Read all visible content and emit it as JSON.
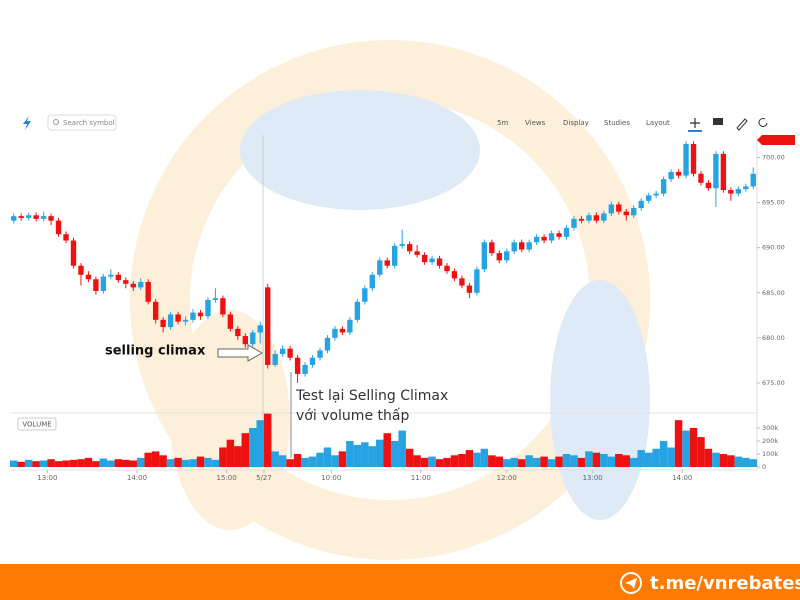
{
  "chart_data": {
    "type": "candlestick",
    "toolbar": [
      "Search symbol",
      "5m",
      "Views",
      "Display",
      "Studies",
      "Layout"
    ],
    "volume_label": "VOLUME",
    "annotations": [
      "selling climax",
      "Test lại Selling Climax",
      "với volume thấp"
    ],
    "up_color": "#26a3e2",
    "down_color": "#ee1111",
    "xlim": [
      0,
      100
    ],
    "xticks": [
      {
        "value": 5,
        "label": "13:00"
      },
      {
        "value": 17,
        "label": "14:00"
      },
      {
        "value": 29,
        "label": "15:00"
      },
      {
        "value": 34,
        "label": "5/27"
      },
      {
        "value": 43,
        "label": "10:00"
      },
      {
        "value": 55,
        "label": "11:00"
      },
      {
        "value": 66.5,
        "label": "12:00"
      },
      {
        "value": 78,
        "label": "13:00"
      },
      {
        "value": 90,
        "label": "14:00"
      }
    ],
    "ylim": [
      672,
      702.5
    ],
    "yticks": [
      {
        "value": 675,
        "label": "675.00"
      },
      {
        "value": 680,
        "label": "680.00"
      },
      {
        "value": 685,
        "label": "685.00"
      },
      {
        "value": 690,
        "label": "690.00"
      },
      {
        "value": 695,
        "label": "695.00"
      },
      {
        "value": 700,
        "label": "700.00"
      }
    ],
    "y2lim": [
      0,
      415000
    ],
    "y2ticks": [
      0,
      {
        "value": 100000,
        "label": "100k"
      },
      {
        "value": 200000,
        "label": "200k"
      },
      {
        "value": 300000,
        "label": "300k"
      }
    ],
    "candles": [
      [
        693.0,
        693.8,
        692.7,
        693.5
      ],
      [
        693.5,
        693.8,
        693.0,
        693.3
      ],
      [
        693.3,
        693.9,
        693.0,
        693.6
      ],
      [
        693.6,
        693.9,
        692.9,
        693.2
      ],
      [
        693.2,
        694.0,
        692.9,
        693.5
      ],
      [
        693.5,
        693.8,
        692.5,
        693.0
      ],
      [
        693.0,
        693.3,
        691.2,
        691.5
      ],
      [
        691.5,
        691.8,
        690.5,
        690.8
      ],
      [
        690.8,
        691.1,
        687.7,
        688.0
      ],
      [
        688.0,
        688.3,
        685.8,
        687.0
      ],
      [
        687.0,
        687.4,
        686.2,
        686.5
      ],
      [
        686.5,
        686.8,
        684.8,
        685.2
      ],
      [
        685.2,
        687.1,
        684.9,
        686.8
      ],
      [
        686.8,
        687.6,
        686.5,
        687.0
      ],
      [
        687.0,
        687.3,
        686.1,
        686.4
      ],
      [
        686.4,
        686.7,
        685.5,
        686.0
      ],
      [
        686.0,
        686.3,
        685.2,
        685.6
      ],
      [
        685.6,
        686.6,
        685.3,
        686.2
      ],
      [
        686.2,
        686.5,
        683.7,
        684.0
      ],
      [
        684.0,
        684.3,
        681.6,
        682.0
      ],
      [
        682.0,
        682.3,
        680.6,
        681.2
      ],
      [
        681.2,
        682.9,
        680.9,
        682.6
      ],
      [
        682.6,
        682.9,
        681.5,
        681.8
      ],
      [
        681.8,
        682.4,
        681.4,
        682.0
      ],
      [
        682.0,
        683.2,
        681.7,
        682.8
      ],
      [
        682.8,
        683.1,
        682.0,
        682.4
      ],
      [
        682.4,
        684.5,
        682.1,
        684.2
      ],
      [
        684.2,
        685.5,
        683.9,
        684.4
      ],
      [
        684.4,
        684.7,
        682.3,
        682.6
      ],
      [
        682.6,
        682.9,
        680.7,
        681.0
      ],
      [
        681.0,
        681.3,
        679.8,
        680.2
      ],
      [
        680.2,
        680.5,
        678.9,
        679.3
      ],
      [
        679.3,
        680.9,
        679.0,
        680.6
      ],
      [
        680.6,
        681.8,
        679.4,
        681.4
      ],
      [
        685.6,
        686.0,
        676.6,
        677.0
      ],
      [
        677.0,
        678.6,
        676.8,
        678.2
      ],
      [
        678.2,
        679.2,
        677.9,
        678.8
      ],
      [
        678.8,
        679.1,
        677.5,
        677.8
      ],
      [
        677.8,
        678.1,
        675.0,
        676.0
      ],
      [
        676.0,
        677.3,
        675.7,
        677.0
      ],
      [
        677.0,
        678.1,
        676.7,
        677.8
      ],
      [
        677.8,
        678.9,
        677.5,
        678.6
      ],
      [
        678.6,
        680.3,
        678.3,
        680.0
      ],
      [
        680.0,
        681.3,
        679.7,
        681.0
      ],
      [
        681.0,
        681.3,
        680.3,
        680.6
      ],
      [
        680.6,
        682.3,
        680.3,
        682.0
      ],
      [
        682.0,
        684.3,
        681.7,
        684.0
      ],
      [
        684.0,
        685.8,
        683.7,
        685.5
      ],
      [
        685.5,
        687.3,
        685.2,
        687.0
      ],
      [
        687.0,
        688.9,
        686.7,
        688.6
      ],
      [
        688.6,
        688.9,
        687.7,
        688.0
      ],
      [
        688.0,
        690.5,
        687.7,
        690.2
      ],
      [
        690.2,
        692.0,
        689.9,
        690.4
      ],
      [
        690.4,
        690.7,
        689.3,
        689.6
      ],
      [
        689.6,
        690.3,
        688.9,
        689.2
      ],
      [
        689.2,
        689.5,
        688.1,
        688.4
      ],
      [
        688.4,
        689.1,
        688.1,
        688.8
      ],
      [
        688.8,
        689.1,
        687.7,
        688.0
      ],
      [
        688.0,
        688.3,
        687.1,
        687.4
      ],
      [
        687.4,
        687.7,
        686.3,
        686.6
      ],
      [
        686.6,
        686.9,
        685.5,
        685.8
      ],
      [
        685.8,
        686.1,
        684.4,
        685.0
      ],
      [
        685.0,
        687.9,
        684.7,
        687.6
      ],
      [
        687.6,
        690.9,
        687.3,
        690.6
      ],
      [
        690.6,
        690.9,
        689.1,
        689.4
      ],
      [
        689.4,
        689.7,
        688.3,
        688.6
      ],
      [
        688.6,
        689.9,
        688.3,
        689.6
      ],
      [
        689.6,
        690.9,
        689.3,
        690.6
      ],
      [
        690.6,
        690.9,
        689.5,
        689.8
      ],
      [
        689.8,
        690.9,
        689.5,
        690.6
      ],
      [
        690.6,
        691.5,
        690.3,
        691.2
      ],
      [
        691.2,
        691.5,
        690.5,
        690.8
      ],
      [
        690.8,
        691.9,
        690.5,
        691.6
      ],
      [
        691.6,
        691.9,
        690.9,
        691.2
      ],
      [
        691.2,
        692.5,
        690.9,
        692.2
      ],
      [
        692.2,
        693.5,
        691.9,
        693.2
      ],
      [
        693.2,
        693.5,
        692.7,
        693.0
      ],
      [
        693.0,
        693.9,
        692.7,
        693.6
      ],
      [
        693.6,
        693.9,
        692.7,
        693.0
      ],
      [
        693.0,
        694.1,
        692.7,
        693.8
      ],
      [
        693.8,
        695.1,
        693.5,
        694.8
      ],
      [
        694.8,
        695.1,
        693.7,
        694.0
      ],
      [
        694.0,
        694.3,
        693.0,
        693.6
      ],
      [
        693.6,
        694.7,
        693.3,
        694.4
      ],
      [
        694.4,
        695.5,
        694.1,
        695.2
      ],
      [
        695.2,
        696.1,
        694.9,
        695.8
      ],
      [
        695.8,
        696.3,
        695.5,
        696.0
      ],
      [
        696.0,
        697.9,
        695.7,
        697.6
      ],
      [
        697.6,
        698.7,
        697.3,
        698.4
      ],
      [
        698.4,
        698.7,
        697.7,
        698.0
      ],
      [
        698.0,
        701.8,
        697.7,
        701.5
      ],
      [
        701.5,
        701.8,
        697.9,
        698.2
      ],
      [
        698.2,
        698.5,
        696.9,
        697.2
      ],
      [
        697.2,
        697.5,
        696.3,
        696.6
      ],
      [
        696.6,
        700.7,
        694.5,
        700.4
      ],
      [
        700.4,
        700.7,
        696.1,
        696.4
      ],
      [
        696.4,
        696.7,
        695.2,
        696.0
      ],
      [
        696.0,
        696.8,
        695.7,
        696.5
      ],
      [
        696.5,
        697.1,
        696.2,
        696.8
      ],
      [
        696.8,
        698.9,
        696.5,
        698.2
      ]
    ],
    "volume": [
      50000,
      40000,
      55000,
      45000,
      50000,
      60000,
      45000,
      50000,
      55000,
      60000,
      70000,
      45000,
      65000,
      50000,
      60000,
      55000,
      50000,
      70000,
      110000,
      120000,
      90000,
      60000,
      70000,
      55000,
      60000,
      80000,
      70000,
      55000,
      150000,
      210000,
      160000,
      260000,
      300000,
      360000,
      410000,
      120000,
      90000,
      60000,
      100000,
      70000,
      80000,
      110000,
      150000,
      90000,
      120000,
      200000,
      170000,
      190000,
      160000,
      210000,
      260000,
      200000,
      280000,
      140000,
      90000,
      70000,
      80000,
      60000,
      70000,
      90000,
      100000,
      130000,
      110000,
      140000,
      90000,
      80000,
      60000,
      70000,
      60000,
      90000,
      70000,
      80000,
      60000,
      80000,
      100000,
      90000,
      70000,
      120000,
      110000,
      100000,
      80000,
      100000,
      90000,
      70000,
      130000,
      110000,
      140000,
      200000,
      150000,
      360000,
      280000,
      300000,
      230000,
      140000,
      110000,
      100000,
      90000,
      80000,
      70000,
      60000
    ],
    "footer": "t.me/vnrebates"
  }
}
